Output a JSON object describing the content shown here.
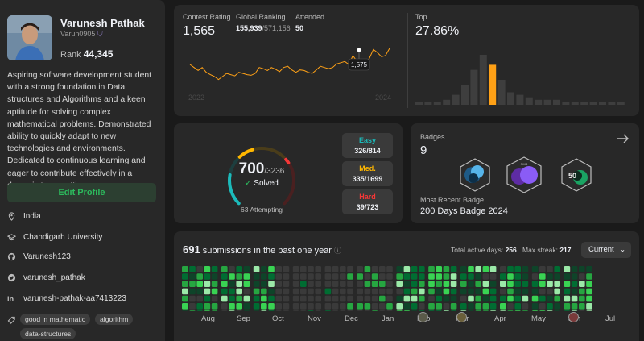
{
  "profile": {
    "name": "Varunesh Pathak",
    "handle": "Varun0905",
    "rank_label": "Rank",
    "rank_value": "44,345",
    "bio": "Aspiring software development student with a strong foundation in Data structures and Algorithms and a keen aptitude for solving complex mathematical problems. Demonstrated ability to quickly adapt to new technologies and environments. Dedicated to continuous learning and eager to contribute effectively in a dynamic team setting.",
    "edit_label": "Edit Profile",
    "location": "India",
    "school": "Chandigarh University",
    "github": "Varunesh123",
    "twitter": "varunesh_pathak",
    "linkedin": "varunesh-pathak-aa7413223",
    "skills": [
      "good in mathematic",
      "algorithm",
      "data-structures"
    ]
  },
  "contest": {
    "rating_label": "Contest Rating",
    "rating": "1,565",
    "global_label": "Global Ranking",
    "global_value": "155,939",
    "global_total": "/571,156",
    "attended_label": "Attended",
    "attended": "50",
    "tooltip": "1,575",
    "year_start": "2022",
    "year_end": "2024",
    "top_label": "Top",
    "top_value": "27.86%"
  },
  "rating_history": [
    1565,
    1560,
    1555,
    1560,
    1552,
    1548,
    1545,
    1540,
    1545,
    1550,
    1548,
    1546,
    1552,
    1550,
    1548,
    1547,
    1550,
    1560,
    1558,
    1555,
    1560,
    1557,
    1553,
    1560,
    1562,
    1556,
    1552,
    1556,
    1555,
    1552,
    1550,
    1556,
    1562,
    1560,
    1558,
    1560,
    1566,
    1568,
    1570,
    1565,
    1580,
    1570,
    1560,
    1568,
    1575,
    1590,
    1585,
    1578,
    1580,
    1592
  ],
  "top_histogram": [
    1,
    1,
    1,
    2,
    4,
    8,
    14,
    20,
    16,
    10,
    5,
    4,
    3,
    2,
    2,
    2,
    1,
    1,
    1,
    1,
    1,
    1,
    1
  ],
  "top_histogram_highlight": 8,
  "solved": {
    "count": "700",
    "total": "/3236",
    "solved_label": "Solved",
    "attempting": "63 Attempting",
    "easy_label": "Easy",
    "easy": "326/814",
    "easy_fraction": 0.4005,
    "medium_label": "Med.",
    "medium": "335/1699",
    "medium_fraction": 0.1972,
    "hard_label": "Hard",
    "hard": "39/723",
    "hard_fraction": 0.0539
  },
  "badges": {
    "label": "Badges",
    "count": "9",
    "recent_label": "Most Recent Badge",
    "recent_name": "200 Days Badge 2024"
  },
  "submissions": {
    "count": "691",
    "text": "submissions in the past one year",
    "active_label": "Total active days:",
    "active_value": "256",
    "streak_label": "Max streak:",
    "streak_value": "217",
    "select_value": "Current",
    "months": [
      "Aug",
      "Sep",
      "Oct",
      "Nov",
      "Dec",
      "Jan",
      "Feb",
      "Mar",
      "Apr",
      "May",
      "Jun",
      "Jul"
    ]
  },
  "colors": {
    "easy": "#1cbaba",
    "medium": "#ffb700",
    "hard": "#f63737",
    "accent_line": "#ffa116",
    "green": "#2cbb5d"
  }
}
